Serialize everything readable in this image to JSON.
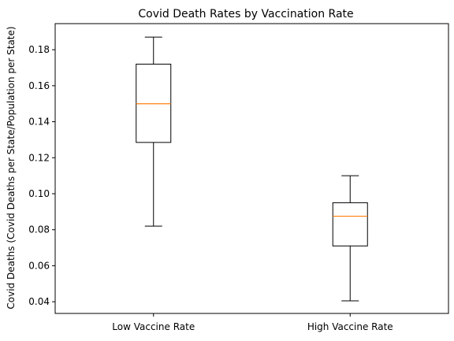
{
  "chart_data": {
    "type": "boxplot",
    "title": "Covid Death Rates by Vaccination Rate",
    "xlabel": "",
    "ylabel": "Covid Deaths (Covid Deaths per State/Population per State)",
    "ylim": [
      0.0335,
      0.1945
    ],
    "yticks": [
      0.04,
      0.06,
      0.08,
      0.1,
      0.12,
      0.14,
      0.16,
      0.18
    ],
    "ytick_labels": [
      "0.04",
      "0.06",
      "0.08",
      "0.10",
      "0.12",
      "0.14",
      "0.16",
      "0.18"
    ],
    "grid": false,
    "categories": [
      "Low Vaccine Rate",
      "High Vaccine Rate"
    ],
    "boxes": [
      {
        "category": "Low Vaccine Rate",
        "whisker_low": 0.082,
        "q1": 0.1285,
        "median": 0.15,
        "q3": 0.172,
        "whisker_high": 0.187
      },
      {
        "category": "High Vaccine Rate",
        "whisker_low": 0.0405,
        "q1": 0.071,
        "median": 0.0875,
        "q3": 0.095,
        "whisker_high": 0.11
      }
    ],
    "colors": {
      "box": "#000000",
      "median": "#ff7f0e",
      "axes": "#000000"
    }
  }
}
